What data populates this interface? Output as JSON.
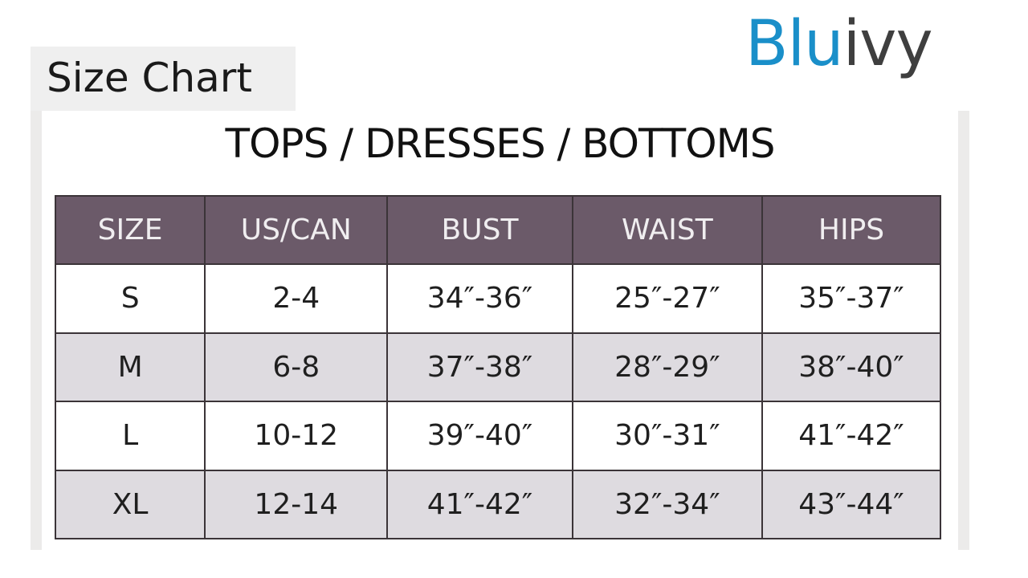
{
  "title": "Size Chart",
  "logo": {
    "part1": "Blu",
    "part2": "ivy",
    "colors": {
      "blu": "#1a8fc9",
      "ivy": "#3f3f3f"
    }
  },
  "heading": "TOPS / DRESSES / BOTTOMS",
  "table": {
    "headers": [
      "SIZE",
      "US/CAN",
      "BUST",
      "WAIST",
      "HIPS"
    ],
    "rows": [
      [
        "S",
        "2-4",
        "34″-36″",
        "25″-27″",
        "35″-37″"
      ],
      [
        "M",
        "6-8",
        "37″-38″",
        "28″-29″",
        "38″-40″"
      ],
      [
        "L",
        "10-12",
        "39″-40″",
        "30″-31″",
        "41″-42″"
      ],
      [
        "XL",
        "12-14",
        "41″-42″",
        "32″-34″",
        "43″-44″"
      ]
    ],
    "header_color": "#6b5a69",
    "alt_row_color": "#dedbe0"
  }
}
